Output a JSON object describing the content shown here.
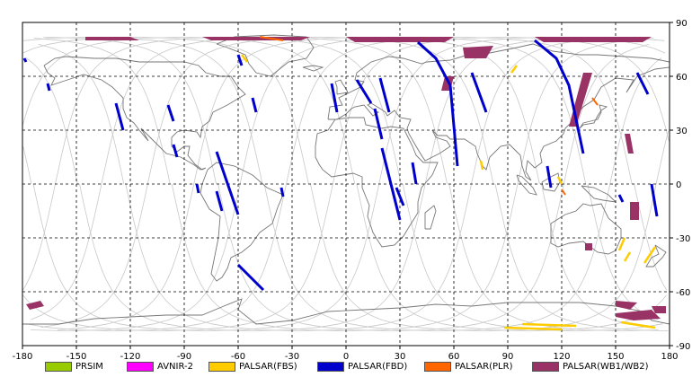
{
  "map": {
    "projection": "equirectangular",
    "lon_range": [
      -180,
      180
    ],
    "lat_range": [
      -90,
      90
    ],
    "x_ticks": [
      "-180",
      "-150",
      "-120",
      "-90",
      "-60",
      "-30",
      "0",
      "30",
      "60",
      "90",
      "120",
      "150",
      "180"
    ],
    "y_ticks": [
      "90",
      "60",
      "30",
      "0",
      "-30",
      "-60",
      "-90"
    ],
    "grid": "dashed, every 30 degrees",
    "coastline_color": "#777777",
    "orbit_track_color": "#c8c8c8"
  },
  "legend": [
    {
      "label": "PRSIM",
      "color": "#99cc00"
    },
    {
      "label": "AVNIR-2",
      "color": "#ff00ff"
    },
    {
      "label": "PALSAR(FBS)",
      "color": "#ffcc00"
    },
    {
      "label": "PALSAR(FBD)",
      "color": "#0000cc"
    },
    {
      "label": "PALSAR(PLR)",
      "color": "#ff6600"
    },
    {
      "label": "PALSAR(WB1/WB2)",
      "color": "#993366"
    }
  ]
}
